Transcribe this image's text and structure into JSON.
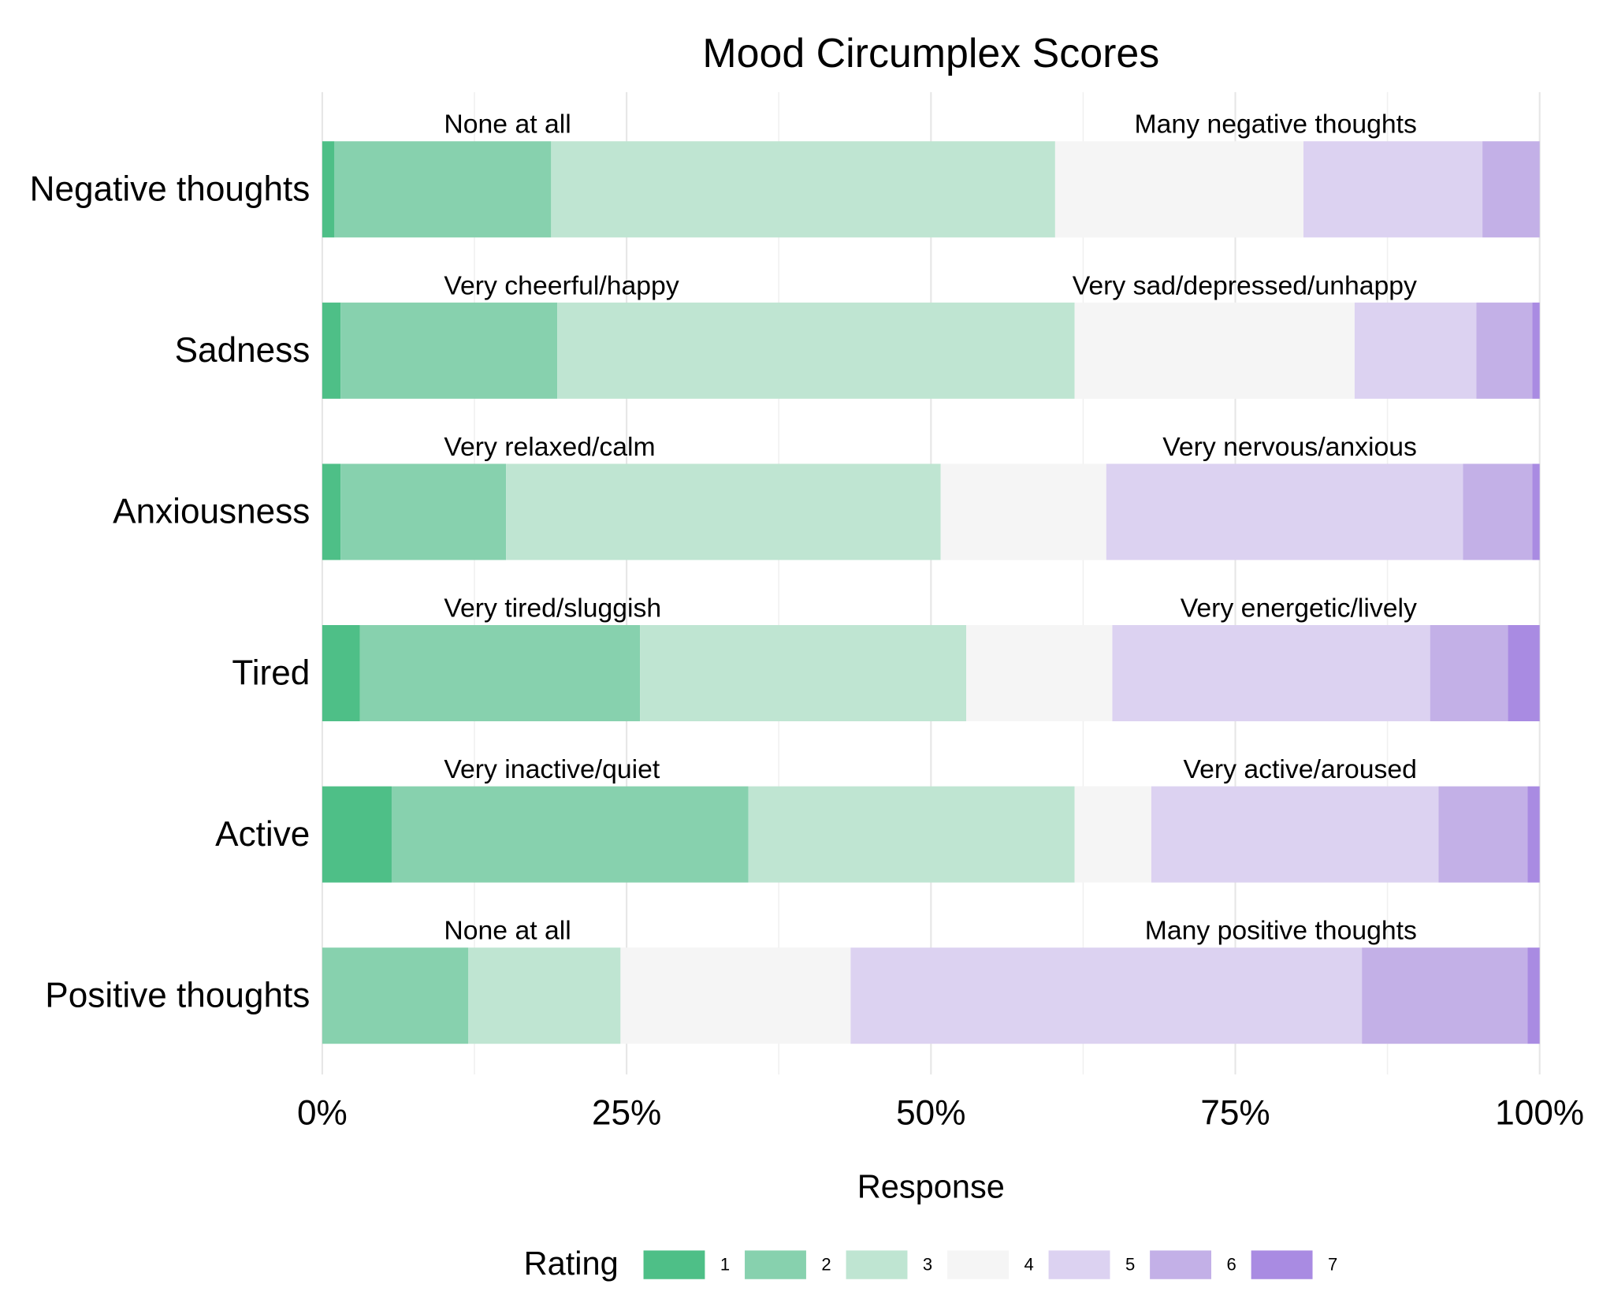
{
  "chart_data": {
    "type": "stacked_bar_horizontal",
    "title": "Mood Circumplex Scores",
    "x_label": "Response",
    "legend_title": "Rating",
    "categories": [
      "Negative thoughts",
      "Sadness",
      "Anxiousness",
      "Tired",
      "Active",
      "Positive thoughts"
    ],
    "low_labels": [
      "None at all",
      "Very cheerful/happy",
      "Very relaxed/calm",
      "Very tired/sluggish",
      "Very inactive/quiet",
      "None at all"
    ],
    "high_labels": [
      "Many negative thoughts",
      "Very sad/depressed/unhappy",
      "Very nervous/anxious",
      "Very energetic/lively",
      "Very active/aroused",
      "Many positive thoughts"
    ],
    "series": [
      {
        "name": "1",
        "color": "#4ebf87",
        "values": [
          1.0,
          1.5,
          1.5,
          3.1,
          5.7,
          0
        ]
      },
      {
        "name": "2",
        "color": "#87d1ae",
        "values": [
          17.8,
          17.8,
          13.6,
          23.0,
          29.3,
          12.0
        ]
      },
      {
        "name": "3",
        "color": "#bfe5d2",
        "values": [
          41.4,
          42.5,
          35.7,
          26.8,
          26.8,
          12.5
        ]
      },
      {
        "name": "4",
        "color": "#f5f5f5",
        "values": [
          20.4,
          23.0,
          13.6,
          12.0,
          6.3,
          18.9
        ]
      },
      {
        "name": "5",
        "color": "#dcd2f1",
        "values": [
          14.7,
          10.0,
          29.3,
          26.1,
          23.6,
          42.0
        ]
      },
      {
        "name": "6",
        "color": "#c3b0e7",
        "values": [
          4.7,
          4.6,
          5.7,
          6.4,
          7.3,
          13.6
        ]
      },
      {
        "name": "7",
        "color": "#a98be2",
        "values": [
          0,
          0.6,
          0.6,
          2.6,
          1.0,
          1.0
        ]
      }
    ],
    "xlim": [
      0,
      100
    ],
    "xticks": [
      {
        "value": 0,
        "label": "0%"
      },
      {
        "value": 25,
        "label": "25%"
      },
      {
        "value": 50,
        "label": "50%"
      },
      {
        "value": 75,
        "label": "75%"
      },
      {
        "value": 100,
        "label": "100%"
      }
    ],
    "minor_xticks": [
      12.5,
      37.5,
      62.5,
      87.5
    ],
    "grid": true,
    "legend": "bottom"
  }
}
